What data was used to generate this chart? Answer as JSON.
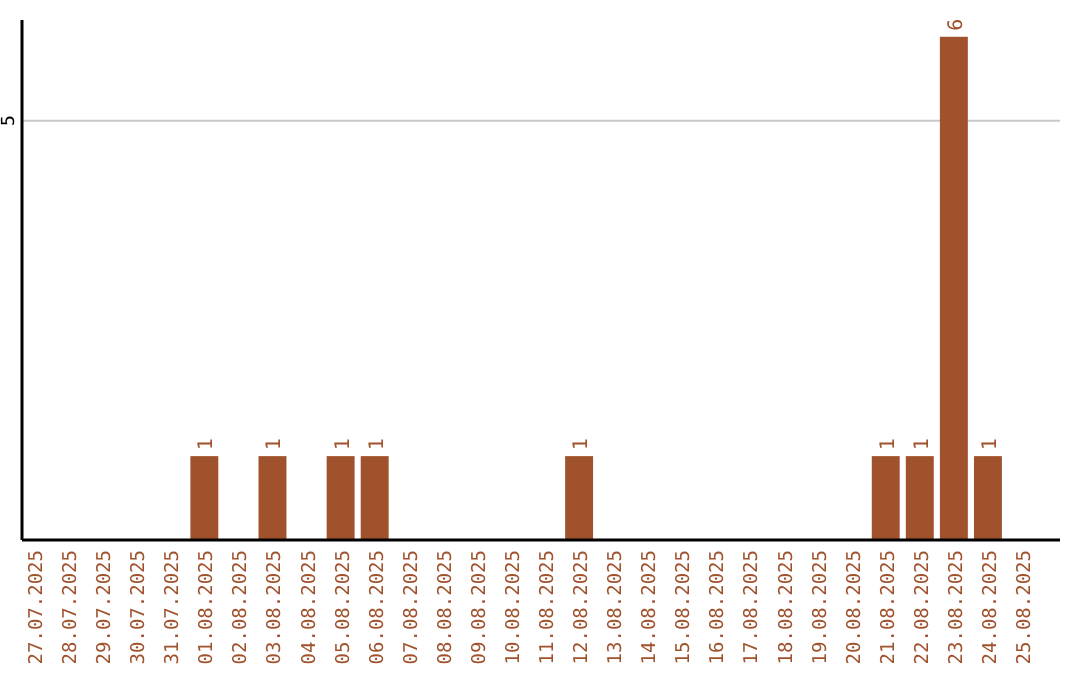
{
  "chart_data": {
    "type": "bar",
    "categories": [
      "27.07.2025",
      "28.07.2025",
      "29.07.2025",
      "30.07.2025",
      "31.07.2025",
      "01.08.2025",
      "02.08.2025",
      "03.08.2025",
      "04.08.2025",
      "05.08.2025",
      "06.08.2025",
      "07.08.2025",
      "08.08.2025",
      "09.08.2025",
      "10.08.2025",
      "11.08.2025",
      "12.08.2025",
      "13.08.2025",
      "14.08.2025",
      "15.08.2025",
      "16.08.2025",
      "17.08.2025",
      "18.08.2025",
      "19.08.2025",
      "20.08.2025",
      "21.08.2025",
      "22.08.2025",
      "23.08.2025",
      "24.08.2025",
      "25.08.2025"
    ],
    "values": [
      0,
      0,
      0,
      0,
      0,
      1,
      0,
      1,
      0,
      1,
      1,
      0,
      0,
      0,
      0,
      0,
      1,
      0,
      0,
      0,
      0,
      0,
      0,
      0,
      0,
      1,
      1,
      6,
      1,
      0
    ],
    "value_labels": [
      null,
      null,
      null,
      null,
      null,
      "1",
      null,
      "1",
      null,
      "1",
      "1",
      null,
      null,
      null,
      null,
      null,
      "1",
      null,
      null,
      null,
      null,
      null,
      null,
      null,
      null,
      "1",
      "1",
      "6",
      "1",
      null
    ],
    "color": "#a0522d",
    "ylim": [
      0,
      6.2
    ],
    "yticks": [
      5
    ],
    "grid": "y"
  }
}
